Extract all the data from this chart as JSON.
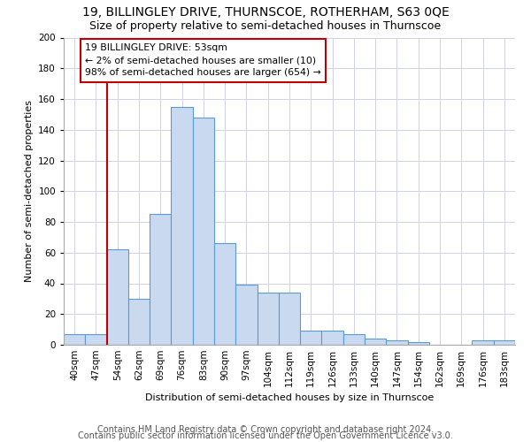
{
  "title1": "19, BILLINGLEY DRIVE, THURNSCOE, ROTHERHAM, S63 0QE",
  "title2": "Size of property relative to semi-detached houses in Thurnscoe",
  "xlabel": "Distribution of semi-detached houses by size in Thurnscoe",
  "ylabel": "Number of semi-detached properties",
  "footer1": "Contains HM Land Registry data © Crown copyright and database right 2024.",
  "footer2": "Contains public sector information licensed under the Open Government Licence v3.0.",
  "categories": [
    "40sqm",
    "47sqm",
    "54sqm",
    "62sqm",
    "69sqm",
    "76sqm",
    "83sqm",
    "90sqm",
    "97sqm",
    "104sqm",
    "112sqm",
    "119sqm",
    "126sqm",
    "133sqm",
    "140sqm",
    "147sqm",
    "154sqm",
    "162sqm",
    "169sqm",
    "176sqm",
    "183sqm"
  ],
  "bar_values": [
    7,
    7,
    62,
    30,
    85,
    155,
    148,
    66,
    39,
    34,
    34,
    9,
    9,
    7,
    4,
    3,
    2,
    0,
    0,
    3,
    3
  ],
  "bar_color": "#c9d9f0",
  "bar_edge_color": "#5b9bd5",
  "vline_x_index": 2,
  "vline_color": "#c00000",
  "annotation_text": "19 BILLINGLEY DRIVE: 53sqm\n← 2% of semi-detached houses are smaller (10)\n98% of semi-detached houses are larger (654) →",
  "annotation_box_color": "white",
  "annotation_box_edge_color": "#c00000",
  "ylim": [
    0,
    200
  ],
  "yticks": [
    0,
    20,
    40,
    60,
    80,
    100,
    120,
    140,
    160,
    180,
    200
  ],
  "bg_color": "white",
  "grid_color": "#d0d0e8",
  "title1_fontsize": 10,
  "title2_fontsize": 9,
  "axis_fontsize": 8,
  "tick_fontsize": 7.5,
  "footer_fontsize": 7
}
